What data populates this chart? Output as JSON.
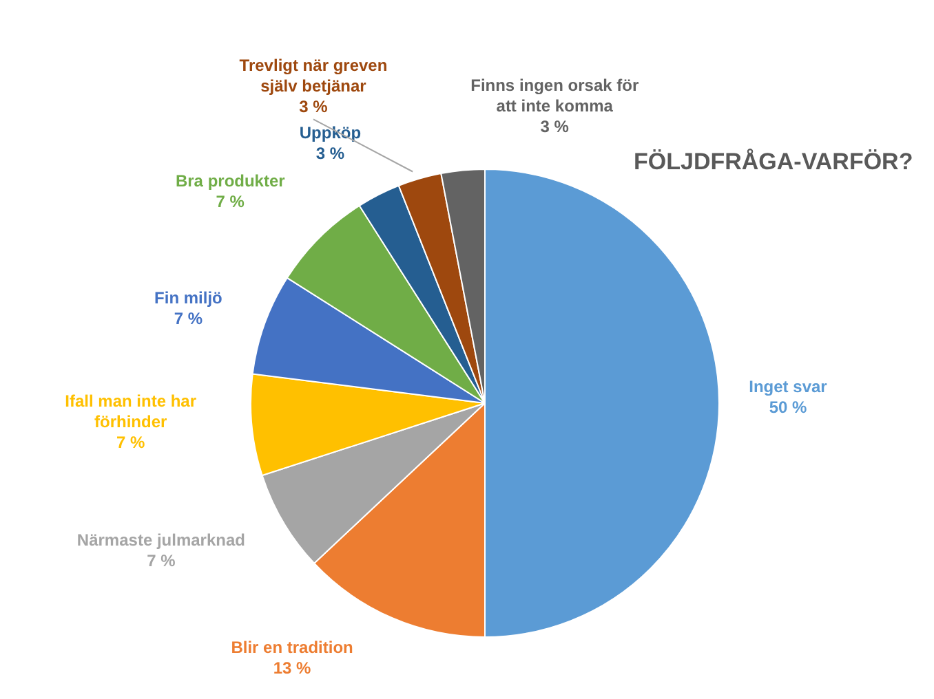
{
  "chart_data": {
    "type": "pie",
    "title": "FÖLJDFRÅGA-VARFÖR?",
    "categories": [
      "Inget svar",
      "Blir en tradition",
      "Närmaste julmarknad",
      "Ifall man inte har förhinder",
      "Fin miljö",
      "Bra produkter",
      "Uppköp",
      "Trevligt när greven själv betjänar",
      "Finns ingen orsak för att inte komma"
    ],
    "values": [
      50,
      13,
      7,
      7,
      7,
      7,
      3,
      3,
      3
    ],
    "value_labels": [
      "50 %",
      "13 %",
      "7 %",
      "7 %",
      "7 %",
      "7 %",
      "3 %",
      "3 %",
      "3 %"
    ],
    "colors": [
      "#5b9bd5",
      "#ed7d31",
      "#a5a5a5",
      "#ffc000",
      "#4472c4",
      "#70ad47",
      "#255e91",
      "#9e480e",
      "#636363"
    ]
  }
}
